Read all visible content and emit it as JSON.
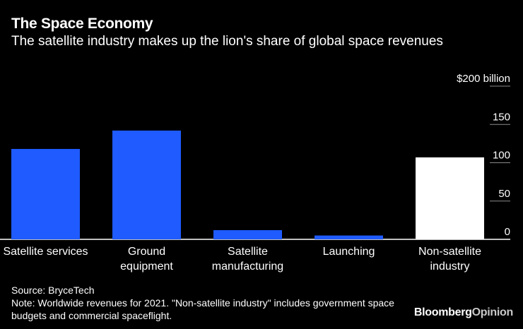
{
  "header": {
    "title": "The Space Economy",
    "subtitle": "The satellite industry makes up the lion's share of global space revenues"
  },
  "chart_data": {
    "type": "bar",
    "categories": [
      [
        "Satellite services"
      ],
      [
        "Ground",
        "equipment"
      ],
      [
        "Satellite",
        "manufacturing"
      ],
      [
        "Launching"
      ],
      [
        "Non-satellite",
        "industry"
      ]
    ],
    "values": [
      118,
      142,
      12,
      5,
      107
    ],
    "bar_colors": [
      "#1f5bff",
      "#1f5bff",
      "#1f5bff",
      "#1f5bff",
      "#ffffff"
    ],
    "ylim": [
      0,
      200
    ],
    "yticks": [
      0,
      50,
      100,
      150,
      200
    ],
    "ytick_labels": [
      "0",
      "50",
      "100",
      "150",
      "$200 billion"
    ],
    "title": "The Space Economy",
    "xlabel": "",
    "ylabel": ""
  },
  "footer": {
    "source": "Source: BryceTech",
    "note": "Note: Worldwide revenues for 2021. \"Non-satellite industry\" includes government space budgets and commercial spaceflight."
  },
  "brand": {
    "part1": "Bloomberg",
    "part2": "Opinion"
  }
}
